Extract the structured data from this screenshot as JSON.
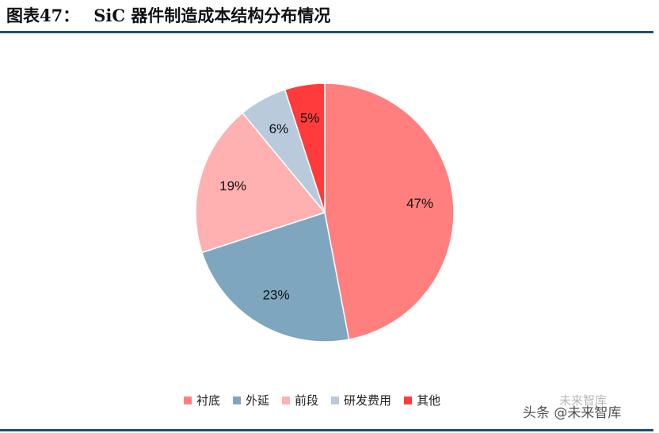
{
  "header": {
    "figure_label": "图表47：",
    "title": "SiC 器件制造成本结构分布情况"
  },
  "chart_data": {
    "type": "pie",
    "title": "SiC 器件制造成本结构分布情况",
    "categories": [
      "衬底",
      "外延",
      "前段",
      "研发费用",
      "其他"
    ],
    "values": [
      47,
      23,
      19,
      6,
      5
    ],
    "labels": [
      "47%",
      "23%",
      "19%",
      "6%",
      "5%"
    ],
    "colors": [
      "#ff7f7f",
      "#7fa6bf",
      "#ffb0b0",
      "#b8cadb",
      "#ff3b3b"
    ],
    "start_angle": "12 o'clock",
    "direction": "clockwise",
    "legend": "bottom"
  },
  "watermark": {
    "text": "头条 @未来智库",
    "faint_text": "未来智库"
  }
}
